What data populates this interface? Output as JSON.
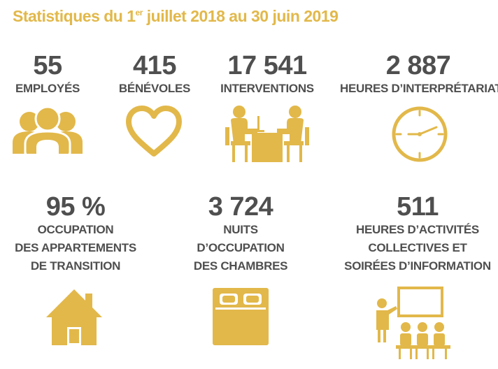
{
  "title": {
    "before": "Statistiques du 1",
    "sup": "er",
    "after": " juillet 2018 au 30 juin 2019"
  },
  "stats": [
    {
      "value": "55",
      "label": [
        "EMPLOYÉS"
      ]
    },
    {
      "value": "415",
      "label": [
        "BÉNÉVOLES"
      ]
    },
    {
      "value": "17 541",
      "label": [
        "INTERVENTIONS"
      ]
    },
    {
      "value": "2 887",
      "label": [
        "HEURES D’INTERPRÉTARIAT"
      ]
    },
    {
      "value": "95 %",
      "label": [
        "OCCUPATION",
        "DES APPARTEMENTS",
        "DE TRANSITION"
      ]
    },
    {
      "value": "3 724",
      "label": [
        "NUITS",
        "D’OCCUPATION",
        "DES CHAMBRES"
      ]
    },
    {
      "value": "511",
      "label": [
        "HEURES D’ACTIVITÉS",
        "COLLECTIVES ET",
        "SOIRÉES D’INFORMATION"
      ]
    }
  ],
  "icons": {
    "employees": "people-icon",
    "volunteers": "heart-icon",
    "interventions": "meeting-icon",
    "interpretation": "clock-icon",
    "apartments": "house-icon",
    "rooms": "bed-icon",
    "activities": "presentation-icon"
  },
  "colors": {
    "accent": "#e2b84a",
    "text": "#4f4f4f"
  }
}
